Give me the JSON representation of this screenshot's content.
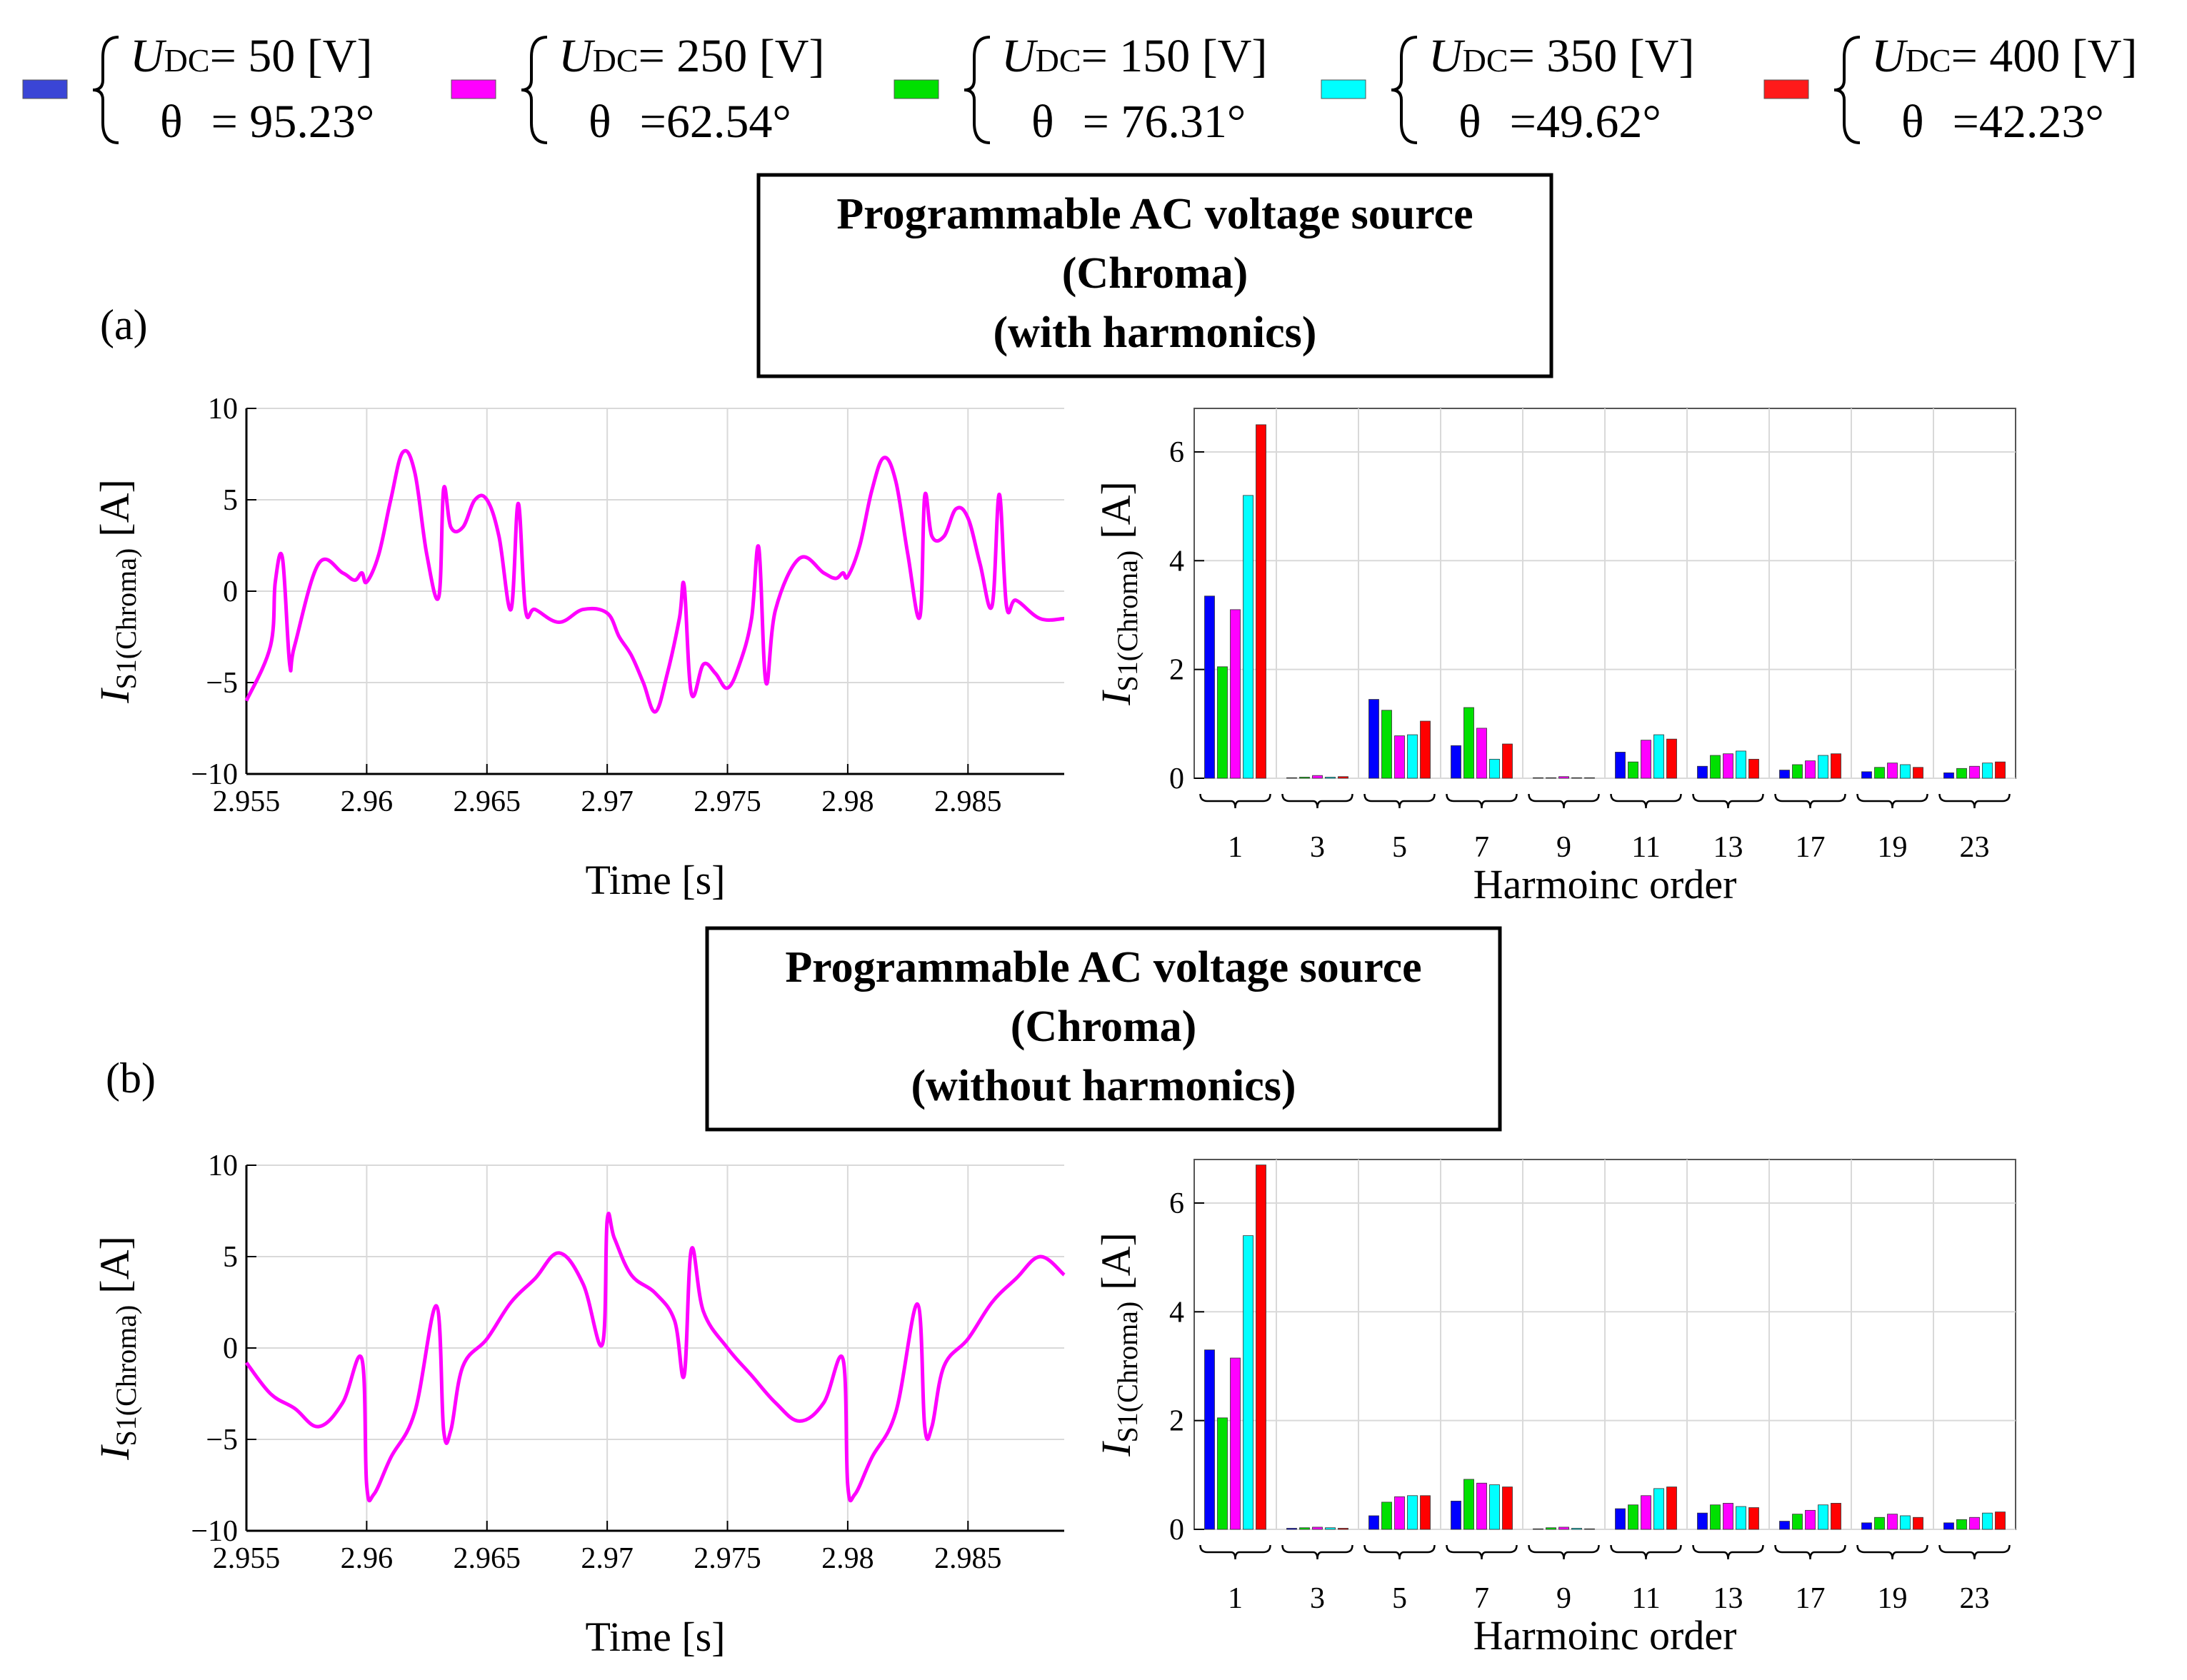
{
  "legend": {
    "entries": [
      {
        "color": "#3a45d6",
        "u_prefix": "U",
        "u_sub": "DC",
        "u_value": "= 50  [V]",
        "theta_label": "θ",
        "theta_value": "= 95.23°"
      },
      {
        "color": "#ff00ff",
        "u_prefix": "U",
        "u_sub": "DC",
        "u_value": "= 250 [V]",
        "theta_label": "θ",
        "theta_value": "=62.54°"
      },
      {
        "color": "#00e000",
        "u_prefix": "U",
        "u_sub": "DC",
        "u_value": "= 150 [V]",
        "theta_label": "θ",
        "theta_value": "= 76.31°"
      },
      {
        "color": "#00ffff",
        "u_prefix": "U",
        "u_sub": "DC",
        "u_value": "= 350 [V]",
        "theta_label": "θ",
        "theta_value": "=49.62°"
      },
      {
        "color": "#ff1a1a",
        "u_prefix": "U",
        "u_sub": "DC",
        "u_value": "=  400 [V]",
        "theta_label": "θ",
        "theta_value": "=42.23°"
      }
    ]
  },
  "panels": [
    {
      "label": "(a)",
      "box_lines": [
        "Programmable AC voltage source",
        "(Chroma)",
        "(with harmonics)"
      ]
    },
    {
      "label": "(b)",
      "box_lines": [
        "Programmable AC voltage source",
        "(Chroma)",
        "(without harmonics)"
      ]
    }
  ],
  "chart_data": [
    {
      "type": "line",
      "panel": "a",
      "xlabel": "Time [s]",
      "ylabel_main": "I",
      "ylabel_sub": "S1(Chroma)",
      "ylabel_unit": "[A]",
      "xlim": [
        2.955,
        2.989
      ],
      "ylim": [
        -10,
        10
      ],
      "xticks": [
        2.955,
        2.96,
        2.965,
        2.97,
        2.975,
        2.98,
        2.985
      ],
      "xtick_labels": [
        "2.955",
        "2.96",
        "2.965",
        "2.97",
        "2.975",
        "2.98",
        "2.985"
      ],
      "yticks": [
        -10,
        -5,
        0,
        5,
        10
      ],
      "ytick_labels": [
        "−10",
        "−5",
        "0",
        "5",
        "10"
      ],
      "color": "#ff00ff",
      "x": [
        2.955,
        2.956,
        2.9562,
        2.9565,
        2.9568,
        2.957,
        2.958,
        2.959,
        2.9595,
        2.9598,
        2.96,
        2.9605,
        2.961,
        2.9615,
        2.962,
        2.9625,
        2.963,
        2.9632,
        2.9635,
        2.964,
        2.9645,
        2.965,
        2.9655,
        2.966,
        2.9663,
        2.9666,
        2.967,
        2.968,
        2.969,
        2.97,
        2.9705,
        2.971,
        2.9715,
        2.972,
        2.9725,
        2.973,
        2.9732,
        2.9735,
        2.974,
        2.9745,
        2.975,
        2.9755,
        2.976,
        2.9763,
        2.9766,
        2.977,
        2.978,
        2.979,
        2.9795,
        2.9798,
        2.98,
        2.9805,
        2.981,
        2.9815,
        2.982,
        2.9825,
        2.983,
        2.9832,
        2.9835,
        2.984,
        2.9845,
        2.985,
        2.9855,
        2.986,
        2.9863,
        2.9866,
        2.987,
        2.988,
        2.989
      ],
      "y": [
        -6,
        -3,
        0.5,
        1.8,
        -4,
        -3,
        1.5,
        1,
        0.6,
        1,
        0.5,
        2,
        5,
        7.6,
        6.5,
        2,
        -0.3,
        5.6,
        3.5,
        3.5,
        5,
        5,
        3,
        -1,
        4.8,
        -1,
        -1,
        -1.7,
        -1,
        -1.2,
        -2.5,
        -3.5,
        -5,
        -6.6,
        -4.5,
        -1.5,
        0.3,
        -5.6,
        -4,
        -4.5,
        -5.3,
        -4,
        -1.5,
        2.4,
        -5,
        -1,
        1.8,
        1,
        0.7,
        1,
        0.8,
        2.5,
        5.5,
        7.3,
        6,
        2,
        -1.4,
        5.2,
        3,
        3,
        4.5,
        4,
        1.5,
        -0.8,
        5.3,
        -0.8,
        -0.5,
        -1.5,
        -1.5
      ]
    },
    {
      "type": "bar",
      "panel": "a",
      "xlabel": "Harmoinc order",
      "ylabel_main": "I",
      "ylabel_sub": "S1(Chroma)",
      "ylabel_unit": "[A]",
      "ylim": [
        0,
        6.8
      ],
      "yticks": [
        0,
        2,
        4,
        6
      ],
      "ytick_labels": [
        "0",
        "2",
        "4",
        "6"
      ],
      "categories": [
        "1",
        "3",
        "5",
        "7",
        "9",
        "11",
        "13",
        "17",
        "19",
        "23"
      ],
      "series": [
        {
          "name": "UDC=50 [V]",
          "color": "#0000ff",
          "values": [
            3.35,
            0.01,
            1.45,
            0.6,
            0.01,
            0.48,
            0.22,
            0.15,
            0.12,
            0.1
          ]
        },
        {
          "name": "UDC=150 [V]",
          "color": "#00e000",
          "values": [
            2.05,
            0.02,
            1.25,
            1.3,
            0.01,
            0.3,
            0.42,
            0.25,
            0.2,
            0.18
          ]
        },
        {
          "name": "UDC=250 [V]",
          "color": "#ff00ff",
          "values": [
            3.1,
            0.05,
            0.78,
            0.92,
            0.03,
            0.7,
            0.45,
            0.32,
            0.28,
            0.22
          ]
        },
        {
          "name": "UDC=350 [V]",
          "color": "#00ffff",
          "values": [
            5.2,
            0.02,
            0.8,
            0.35,
            0.01,
            0.8,
            0.5,
            0.42,
            0.25,
            0.28
          ]
        },
        {
          "name": "UDC=400 [V]",
          "color": "#ff0000",
          "values": [
            6.5,
            0.03,
            1.05,
            0.63,
            0.01,
            0.72,
            0.35,
            0.45,
            0.2,
            0.3
          ]
        }
      ]
    },
    {
      "type": "line",
      "panel": "b",
      "xlabel": "Time [s]",
      "ylabel_main": "I",
      "ylabel_sub": "S1(Chroma)",
      "ylabel_unit": "[A]",
      "xlim": [
        2.955,
        2.989
      ],
      "ylim": [
        -10,
        10
      ],
      "xticks": [
        2.955,
        2.96,
        2.965,
        2.97,
        2.975,
        2.98,
        2.985
      ],
      "xtick_labels": [
        "2.955",
        "2.96",
        "2.965",
        "2.97",
        "2.975",
        "2.98",
        "2.985"
      ],
      "yticks": [
        -10,
        -5,
        0,
        5,
        10
      ],
      "ytick_labels": [
        "−10",
        "−5",
        "0",
        "5",
        "10"
      ],
      "color": "#ff00ff",
      "x": [
        2.955,
        2.956,
        2.957,
        2.958,
        2.959,
        2.9598,
        2.96,
        2.9603,
        2.961,
        2.962,
        2.9629,
        2.9632,
        2.9635,
        2.964,
        2.965,
        2.966,
        2.967,
        2.968,
        2.969,
        2.9698,
        2.97,
        2.9703,
        2.971,
        2.972,
        2.9728,
        2.9732,
        2.9735,
        2.974,
        2.975,
        2.976,
        2.977,
        2.978,
        2.979,
        2.9798,
        2.98,
        2.9803,
        2.981,
        2.982,
        2.9829,
        2.9832,
        2.9835,
        2.984,
        2.985,
        2.986,
        2.987,
        2.988,
        2.989
      ],
      "y": [
        -0.8,
        -2.5,
        -3.3,
        -4.3,
        -3,
        -0.6,
        -7.5,
        -8,
        -6,
        -3.5,
        2.3,
        -4.5,
        -4.5,
        -1,
        0.5,
        2.5,
        3.8,
        5.2,
        3.5,
        0.2,
        7,
        6,
        4,
        3,
        1.5,
        -1.5,
        5.4,
        2,
        0,
        -1.5,
        -3,
        -4,
        -3,
        -0.6,
        -7.5,
        -8,
        -6,
        -3.5,
        2.4,
        -4.3,
        -4.3,
        -1,
        0.5,
        2.5,
        3.8,
        5,
        4
      ]
    },
    {
      "type": "bar",
      "panel": "b",
      "xlabel": "Harmoinc order",
      "ylabel_main": "I",
      "ylabel_sub": "S1(Chroma)",
      "ylabel_unit": "[A]",
      "ylim": [
        0,
        6.8
      ],
      "yticks": [
        0,
        2,
        4,
        6
      ],
      "ytick_labels": [
        "0",
        "2",
        "4",
        "6"
      ],
      "categories": [
        "1",
        "3",
        "5",
        "7",
        "9",
        "11",
        "13",
        "17",
        "19",
        "23"
      ],
      "series": [
        {
          "name": "UDC=50 [V]",
          "color": "#0000ff",
          "values": [
            3.3,
            0.02,
            0.25,
            0.52,
            0.01,
            0.38,
            0.3,
            0.15,
            0.12,
            0.12
          ]
        },
        {
          "name": "UDC=150 [V]",
          "color": "#00e000",
          "values": [
            2.05,
            0.03,
            0.5,
            0.92,
            0.03,
            0.45,
            0.45,
            0.28,
            0.22,
            0.18
          ]
        },
        {
          "name": "UDC=250 [V]",
          "color": "#ff00ff",
          "values": [
            3.15,
            0.04,
            0.6,
            0.85,
            0.04,
            0.62,
            0.48,
            0.35,
            0.28,
            0.22
          ]
        },
        {
          "name": "UDC=350 [V]",
          "color": "#00ffff",
          "values": [
            5.4,
            0.03,
            0.62,
            0.82,
            0.02,
            0.75,
            0.42,
            0.45,
            0.25,
            0.3
          ]
        },
        {
          "name": "UDC=400 [V]",
          "color": "#ff0000",
          "values": [
            6.7,
            0.02,
            0.62,
            0.78,
            0.01,
            0.78,
            0.4,
            0.48,
            0.22,
            0.32
          ]
        }
      ]
    }
  ]
}
